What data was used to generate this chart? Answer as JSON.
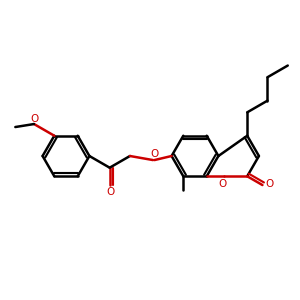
{
  "bond_color": "#000000",
  "highlight_color": "#cc0000",
  "bg_color": "#ffffff",
  "bond_width": 1.8,
  "figsize": [
    3.0,
    3.0
  ],
  "dpi": 100,
  "xlim": [
    0,
    10
  ],
  "ylim": [
    0,
    10
  ]
}
